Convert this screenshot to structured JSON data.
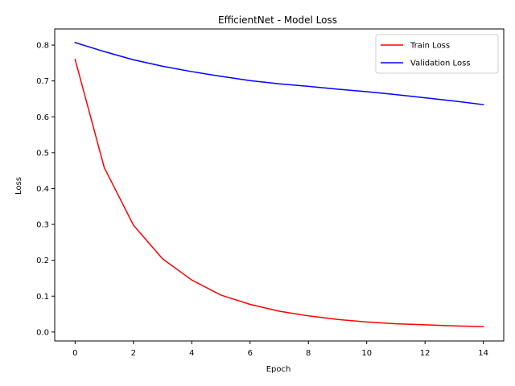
{
  "chart_data": {
    "type": "line",
    "title": "EfficientNet - Model Loss",
    "xlabel": "Epoch",
    "ylabel": "Loss",
    "x": [
      0,
      1,
      2,
      3,
      4,
      5,
      6,
      7,
      8,
      9,
      10,
      11,
      12,
      13,
      14
    ],
    "series": [
      {
        "name": "Train Loss",
        "color": "#ff0000",
        "values": [
          0.76,
          0.458,
          0.298,
          0.204,
          0.145,
          0.103,
          0.077,
          0.058,
          0.045,
          0.035,
          0.028,
          0.023,
          0.02,
          0.017,
          0.015
        ]
      },
      {
        "name": "Validation Loss",
        "color": "#0000ff",
        "values": [
          0.807,
          0.782,
          0.759,
          0.741,
          0.726,
          0.713,
          0.701,
          0.692,
          0.685,
          0.677,
          0.67,
          0.662,
          0.653,
          0.644,
          0.634
        ]
      }
    ],
    "xlim": [
      -0.7,
      14.7
    ],
    "ylim": [
      -0.025,
      0.845
    ],
    "xticks": [
      0,
      2,
      4,
      6,
      8,
      10,
      12,
      14
    ],
    "yticks": [
      0.0,
      0.1,
      0.2,
      0.3,
      0.4,
      0.5,
      0.6,
      0.7,
      0.8
    ],
    "ytick_labels": [
      "0.0",
      "0.1",
      "0.2",
      "0.3",
      "0.4",
      "0.5",
      "0.6",
      "0.7",
      "0.8"
    ],
    "grid": false,
    "legend": "upper right"
  }
}
